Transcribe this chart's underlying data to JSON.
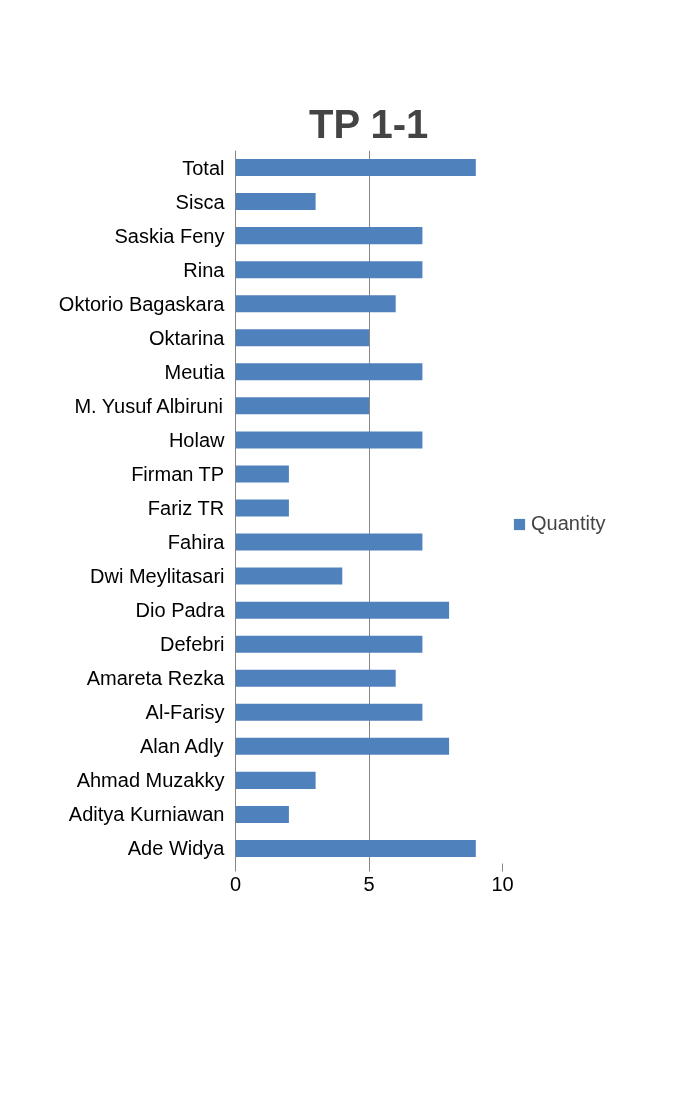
{
  "chart_data": {
    "type": "bar",
    "orientation": "horizontal",
    "title": "TP 1-1",
    "categories": [
      "Total",
      "Sisca",
      "Saskia Feny",
      "Rina",
      "Oktorio Bagaskara",
      "Oktarina",
      "Meutia",
      "M. Yusuf Albiruni",
      "Holaw",
      "Firman TP",
      "Fariz TR",
      "Fahira",
      "Dwi Meylitasari",
      "Dio Padra",
      "Defebri",
      "Amareta Rezka",
      "Al-Farisy",
      "Alan Adly",
      "Ahmad Muzakky",
      "Aditya Kurniawan",
      "Ade Widya"
    ],
    "series": [
      {
        "name": "Quantity",
        "color": "#4f81bd",
        "values": [
          9,
          3,
          7,
          7,
          6,
          5,
          7,
          5,
          7,
          2,
          2,
          7,
          4,
          8,
          7,
          6,
          7,
          8,
          3,
          2,
          9
        ]
      }
    ],
    "xlim": [
      0,
      10
    ],
    "xticks": [
      0,
      5,
      10
    ],
    "grid": "x",
    "legend": "right"
  }
}
